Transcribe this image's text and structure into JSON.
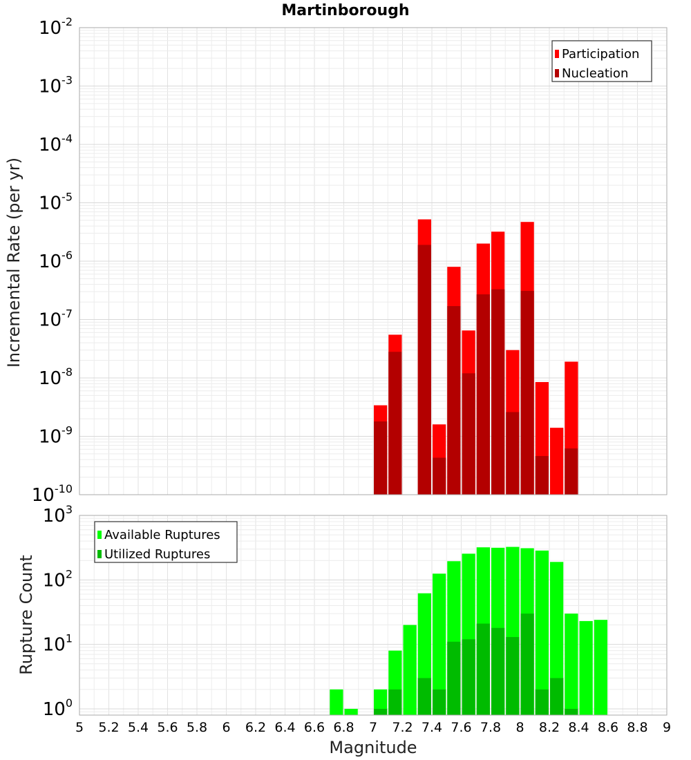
{
  "chart_data": [
    {
      "type": "bar",
      "title": "Martinborough",
      "ylabel": "Incremental Rate (per yr)",
      "xlabel": "",
      "yscale": "log",
      "ylim": [
        1e-10,
        0.01
      ],
      "xlim": [
        5,
        9
      ],
      "grid": true,
      "legend_position": "top-right",
      "bar_width": 0.1,
      "y_tick_exponents": [
        "-10",
        "-9",
        "-8",
        "-7",
        "-6",
        "-5",
        "-4",
        "-3",
        "-2"
      ],
      "y_tick_base": "10",
      "series": [
        {
          "name": "Participation",
          "color": "#ff0000",
          "x": [
            7.0,
            7.1,
            7.2,
            7.3,
            7.4,
            7.5,
            7.6,
            7.7,
            7.8,
            7.9,
            8.0,
            8.1,
            8.2,
            8.3
          ],
          "values": [
            3.4e-09,
            5.5e-08,
            0,
            5.2e-06,
            1.6e-09,
            8e-07,
            6.5e-08,
            2e-06,
            3.2e-06,
            3e-08,
            4.7e-06,
            8.5e-09,
            1.4e-09,
            1.9e-08
          ]
        },
        {
          "name": "Nucleation",
          "color": "#b30000",
          "x": [
            7.0,
            7.1,
            7.2,
            7.3,
            7.4,
            7.5,
            7.6,
            7.7,
            7.8,
            7.9,
            8.0,
            8.1,
            8.2,
            8.3
          ],
          "values": [
            1.8e-09,
            2.8e-08,
            0,
            1.9e-06,
            4.3e-10,
            1.7e-07,
            1.2e-08,
            2.7e-07,
            3.3e-07,
            2.6e-09,
            3.1e-07,
            4.6e-10,
            0,
            6.2e-10
          ]
        }
      ]
    },
    {
      "type": "bar",
      "title": "",
      "ylabel": "Rupture Count",
      "xlabel": "Magnitude",
      "yscale": "log",
      "ylim": [
        0.8,
        1000
      ],
      "xlim": [
        5,
        9
      ],
      "grid": true,
      "legend_position": "top-left",
      "bar_width": 0.1,
      "y_tick_exponents": [
        "0",
        "1",
        "2",
        "3"
      ],
      "y_tick_base": "10",
      "x_tick_labels": [
        "5",
        "5.2",
        "5.4",
        "5.6",
        "5.8",
        "6",
        "6.2",
        "6.4",
        "6.6",
        "6.8",
        "7",
        "7.2",
        "7.4",
        "7.6",
        "7.8",
        "8",
        "8.2",
        "8.4",
        "8.6",
        "8.8",
        "9"
      ],
      "series": [
        {
          "name": "Available Ruptures",
          "color": "#00ff00",
          "x": [
            6.7,
            6.8,
            7.0,
            7.1,
            7.2,
            7.3,
            7.4,
            7.5,
            7.6,
            7.7,
            7.8,
            7.9,
            8.0,
            8.1,
            8.2,
            8.3,
            8.4,
            8.5
          ],
          "values": [
            2,
            1,
            2,
            8,
            20,
            62,
            125,
            195,
            255,
            320,
            315,
            325,
            310,
            285,
            190,
            30,
            23,
            24
          ]
        },
        {
          "name": "Utilized Ruptures",
          "color": "#00bb00",
          "x": [
            6.7,
            6.8,
            7.0,
            7.1,
            7.2,
            7.3,
            7.4,
            7.5,
            7.6,
            7.7,
            7.8,
            7.9,
            8.0,
            8.1,
            8.2,
            8.3,
            8.4,
            8.5
          ],
          "values": [
            0,
            0,
            1,
            2,
            0,
            3,
            2,
            11,
            12,
            21,
            18,
            13,
            30,
            2,
            3,
            1,
            0,
            0
          ]
        }
      ]
    }
  ]
}
